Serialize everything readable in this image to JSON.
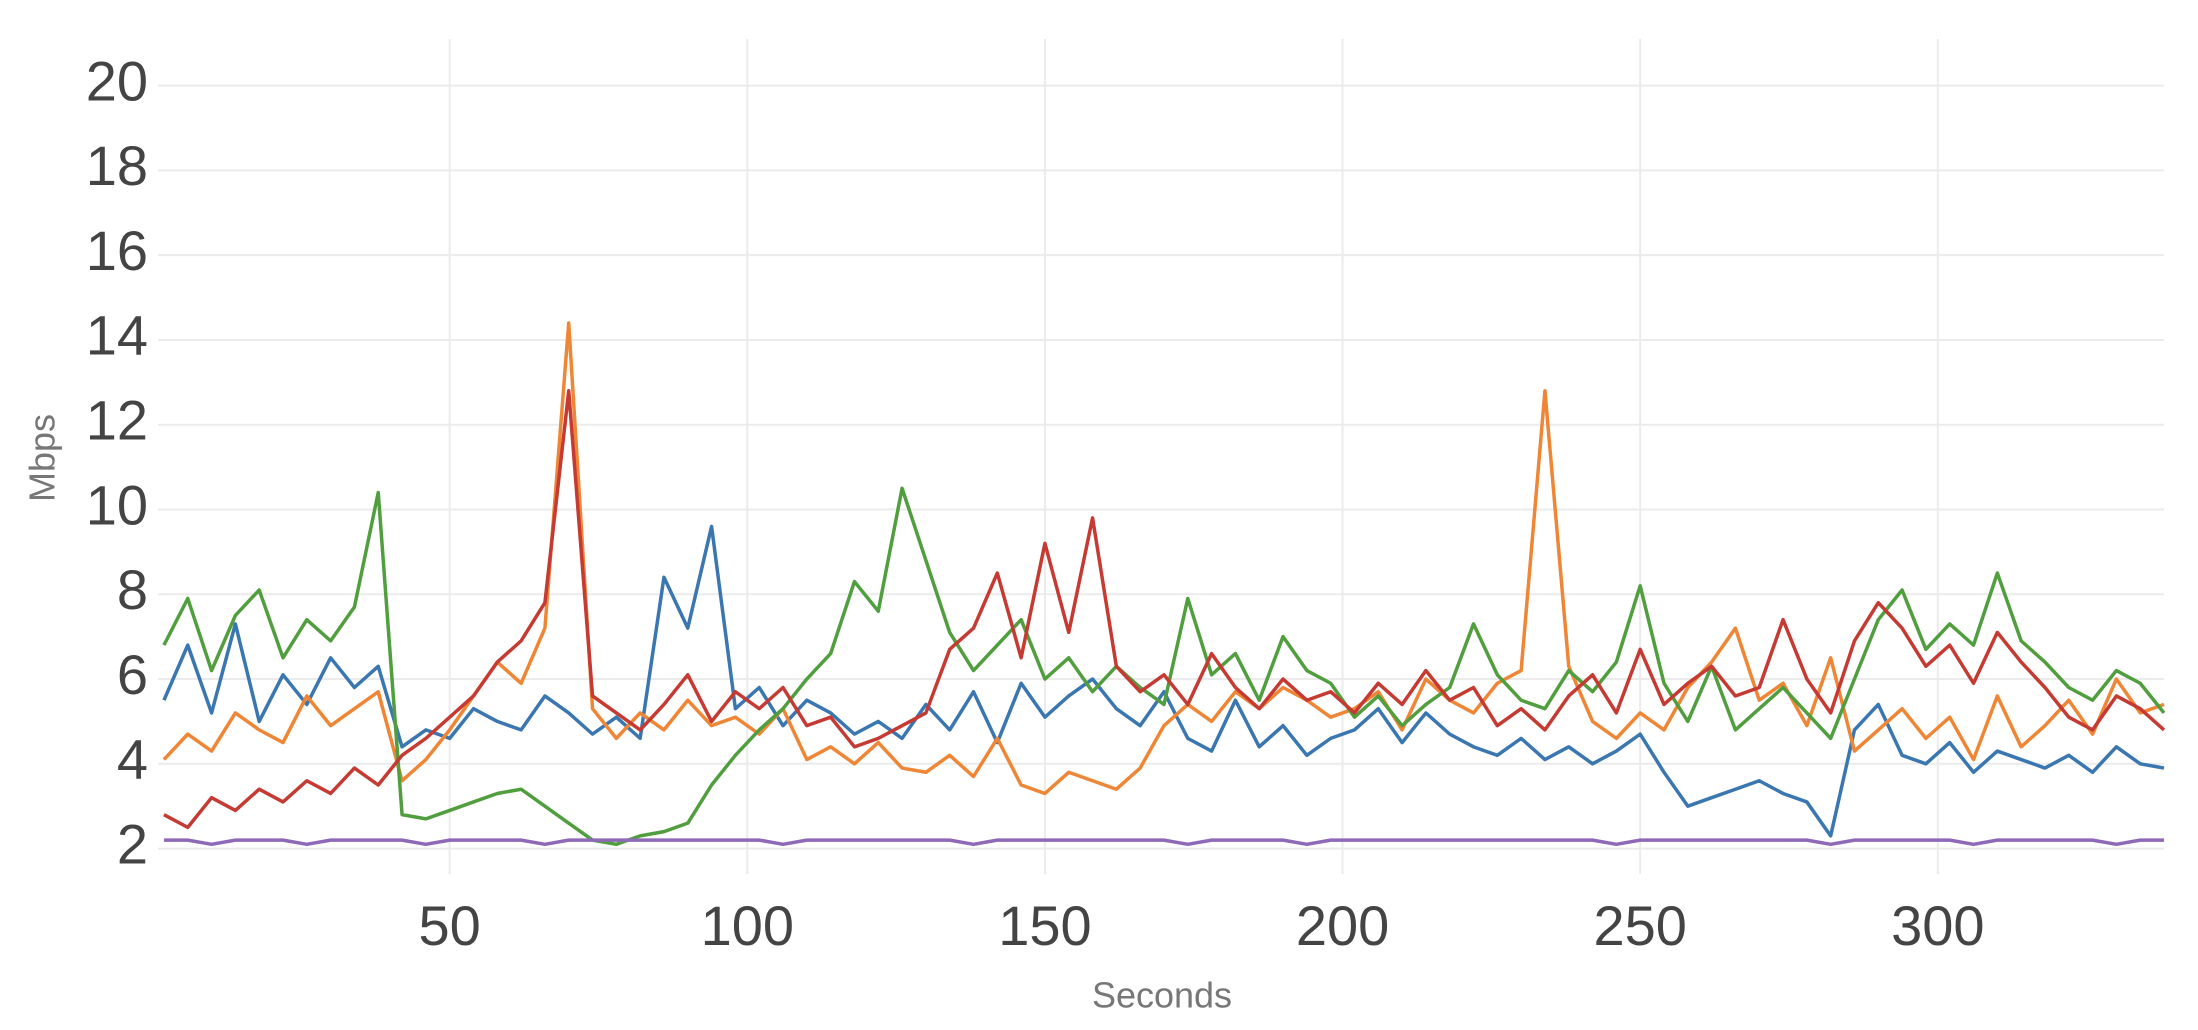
{
  "chart_data": {
    "type": "line",
    "x_label": "Seconds",
    "y_label": "Mbps",
    "x": [
      2,
      6,
      10,
      14,
      18,
      22,
      26,
      30,
      34,
      38,
      42,
      46,
      50,
      54,
      58,
      62,
      66,
      70,
      74,
      78,
      82,
      86,
      90,
      94,
      98,
      102,
      106,
      110,
      114,
      118,
      122,
      126,
      130,
      134,
      138,
      142,
      146,
      150,
      154,
      158,
      162,
      166,
      170,
      174,
      178,
      182,
      186,
      190,
      194,
      198,
      202,
      206,
      210,
      214,
      218,
      222,
      226,
      230,
      234,
      238,
      242,
      246,
      250,
      254,
      258,
      262,
      266,
      270,
      274,
      278,
      282,
      286,
      290,
      294,
      298,
      302,
      306,
      310,
      314,
      318,
      322,
      326,
      330,
      334,
      338
    ],
    "series": [
      {
        "color": "#3a76af",
        "values": [
          5.5,
          6.8,
          5.2,
          7.3,
          5.0,
          6.1,
          5.4,
          6.5,
          5.8,
          6.3,
          4.4,
          4.8,
          4.6,
          5.3,
          5.0,
          4.8,
          5.6,
          5.2,
          4.7,
          5.1,
          4.6,
          8.4,
          7.2,
          9.6,
          5.3,
          5.8,
          4.9,
          5.5,
          5.2,
          4.7,
          5.0,
          4.6,
          5.4,
          4.8,
          5.7,
          4.5,
          5.9,
          5.1,
          5.6,
          6.0,
          5.3,
          4.9,
          5.7,
          4.6,
          4.3,
          5.5,
          4.4,
          4.9,
          4.2,
          4.6,
          4.8,
          5.3,
          4.5,
          5.2,
          4.7,
          4.4,
          4.2,
          4.6,
          4.1,
          4.4,
          4.0,
          4.3,
          4.7,
          3.8,
          3.0,
          3.2,
          3.4,
          3.6,
          3.3,
          3.1,
          2.3,
          4.8,
          5.4,
          4.2,
          4.0,
          4.5,
          3.8,
          4.3,
          4.1,
          3.9,
          4.2,
          3.8,
          4.4,
          4.0,
          3.9
        ]
      },
      {
        "color": "#ef8636",
        "values": [
          4.1,
          4.7,
          4.3,
          5.2,
          4.8,
          4.5,
          5.6,
          4.9,
          5.3,
          5.7,
          3.6,
          4.1,
          4.8,
          5.6,
          6.4,
          5.9,
          7.2,
          14.4,
          5.3,
          4.6,
          5.2,
          4.8,
          5.5,
          4.9,
          5.1,
          4.7,
          5.3,
          4.1,
          4.4,
          4.0,
          4.5,
          3.9,
          3.8,
          4.2,
          3.7,
          4.6,
          3.5,
          3.3,
          3.8,
          3.6,
          3.4,
          3.9,
          4.9,
          5.4,
          5.0,
          5.7,
          5.3,
          5.8,
          5.5,
          5.1,
          5.3,
          5.7,
          4.8,
          6.0,
          5.5,
          5.2,
          5.9,
          6.2,
          12.8,
          6.3,
          5.0,
          4.6,
          5.2,
          4.8,
          5.8,
          6.4,
          7.2,
          5.5,
          5.9,
          4.9,
          6.5,
          4.3,
          4.8,
          5.3,
          4.6,
          5.1,
          4.1,
          5.6,
          4.4,
          4.9,
          5.5,
          4.7,
          6.0,
          5.2,
          5.4
        ]
      },
      {
        "color": "#519e3e",
        "values": [
          6.8,
          7.9,
          6.2,
          7.5,
          8.1,
          6.5,
          7.4,
          6.9,
          7.7,
          10.4,
          2.8,
          2.7,
          2.9,
          3.1,
          3.3,
          3.4,
          3.0,
          2.6,
          2.2,
          2.1,
          2.3,
          2.4,
          2.6,
          3.5,
          4.2,
          4.8,
          5.3,
          6.0,
          6.6,
          8.3,
          7.6,
          10.5,
          8.8,
          7.1,
          6.2,
          6.8,
          7.4,
          6.0,
          6.5,
          5.7,
          6.3,
          5.8,
          5.4,
          7.9,
          6.1,
          6.6,
          5.5,
          7.0,
          6.2,
          5.9,
          5.1,
          5.6,
          4.9,
          5.4,
          5.8,
          7.3,
          6.1,
          5.5,
          5.3,
          6.2,
          5.7,
          6.4,
          8.2,
          5.9,
          5.0,
          6.3,
          4.8,
          5.3,
          5.8,
          5.2,
          4.6,
          6.0,
          7.4,
          8.1,
          6.7,
          7.3,
          6.8,
          8.5,
          6.9,
          6.4,
          5.8,
          5.5,
          6.2,
          5.9,
          5.2
        ]
      },
      {
        "color": "#c53a32",
        "values": [
          2.8,
          2.5,
          3.2,
          2.9,
          3.4,
          3.1,
          3.6,
          3.3,
          3.9,
          3.5,
          4.2,
          4.6,
          5.1,
          5.6,
          6.4,
          6.9,
          7.8,
          12.8,
          5.6,
          5.2,
          4.8,
          5.4,
          6.1,
          5.0,
          5.7,
          5.3,
          5.8,
          4.9,
          5.1,
          4.4,
          4.6,
          4.9,
          5.2,
          6.7,
          7.2,
          8.5,
          6.5,
          9.2,
          7.1,
          9.8,
          6.3,
          5.7,
          6.1,
          5.4,
          6.6,
          5.8,
          5.3,
          6.0,
          5.5,
          5.7,
          5.2,
          5.9,
          5.4,
          6.2,
          5.5,
          5.8,
          4.9,
          5.3,
          4.8,
          5.6,
          6.1,
          5.2,
          6.7,
          5.4,
          5.9,
          6.3,
          5.6,
          5.8,
          7.4,
          6.0,
          5.2,
          6.9,
          7.8,
          7.2,
          6.3,
          6.8,
          5.9,
          7.1,
          6.4,
          5.8,
          5.1,
          4.8,
          5.6,
          5.3,
          4.8
        ]
      },
      {
        "color": "#8d69b8",
        "values": [
          2.2,
          2.2,
          2.1,
          2.2,
          2.2,
          2.2,
          2.1,
          2.2,
          2.2,
          2.2,
          2.2,
          2.1,
          2.2,
          2.2,
          2.2,
          2.2,
          2.1,
          2.2,
          2.2,
          2.2,
          2.2,
          2.2,
          2.2,
          2.2,
          2.2,
          2.2,
          2.1,
          2.2,
          2.2,
          2.2,
          2.2,
          2.2,
          2.2,
          2.2,
          2.1,
          2.2,
          2.2,
          2.2,
          2.2,
          2.2,
          2.2,
          2.2,
          2.2,
          2.1,
          2.2,
          2.2,
          2.2,
          2.2,
          2.1,
          2.2,
          2.2,
          2.2,
          2.2,
          2.2,
          2.2,
          2.2,
          2.2,
          2.2,
          2.2,
          2.2,
          2.2,
          2.1,
          2.2,
          2.2,
          2.2,
          2.2,
          2.2,
          2.2,
          2.2,
          2.2,
          2.1,
          2.2,
          2.2,
          2.2,
          2.2,
          2.2,
          2.1,
          2.2,
          2.2,
          2.2,
          2.2,
          2.2,
          2.1,
          2.2,
          2.2
        ]
      }
    ],
    "xlim": [
      1,
      338
    ],
    "ylim": [
      1.4,
      21.1
    ],
    "xticks": [
      50,
      100,
      150,
      200,
      250,
      300
    ],
    "yticks": [
      2,
      4,
      6,
      8,
      10,
      12,
      14,
      16,
      18,
      20
    ],
    "grid": true
  }
}
